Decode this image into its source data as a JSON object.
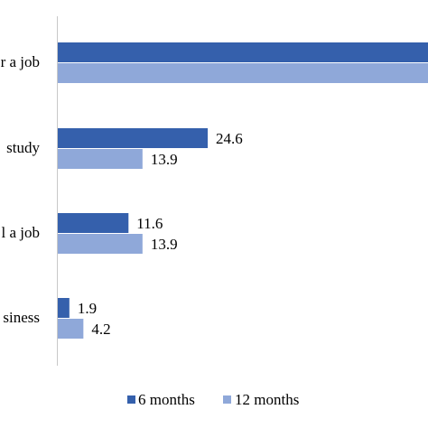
{
  "chart_data": {
    "type": "bar",
    "orientation": "horizontal",
    "categories": [
      "r a job",
      "study",
      "l a job",
      "siness"
    ],
    "series": [
      {
        "name": "6 months",
        "color": "#3560ac",
        "values": [
          null,
          24.6,
          11.6,
          1.9
        ]
      },
      {
        "name": "12 months",
        "color": "#8fa8d9",
        "values": [
          null,
          13.9,
          13.9,
          4.2
        ]
      }
    ],
    "value_labels": [
      [
        "",
        "24.6",
        "11.6",
        "1.9"
      ],
      [
        "",
        "13.9",
        "13.9",
        "4.2"
      ]
    ],
    "bars_cropped_beyond_right_edge": [
      true,
      true
    ],
    "xlim": [
      0,
      50
    ],
    "legend_position": "bottom",
    "grid": false
  }
}
